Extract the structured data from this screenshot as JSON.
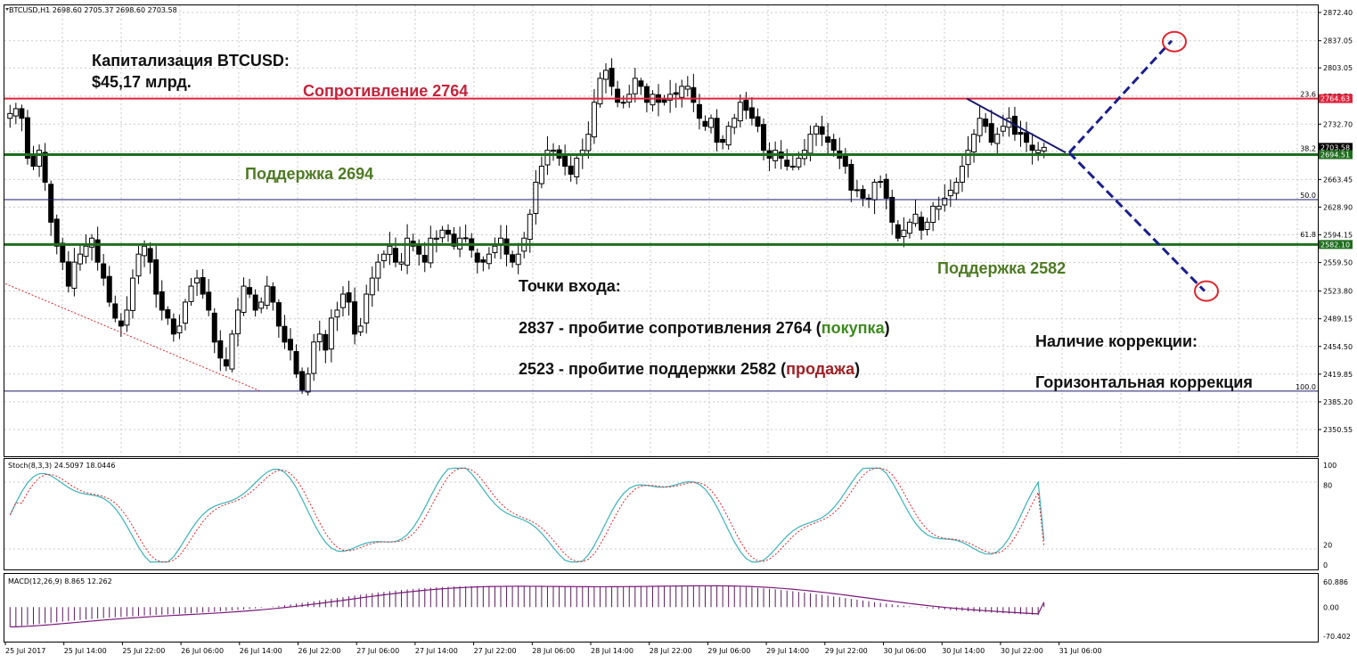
{
  "header": {
    "symbol_info": "BTCUSD,H1  2698.60 2705.37 2698.60 2703.58"
  },
  "price_axis": {
    "ticks": [
      "2872.40",
      "2837.05",
      "2803.05",
      "2767.70",
      "2732.70",
      "2698.70",
      "2663.45",
      "2628.90",
      "2594.15",
      "2559.50",
      "2523.80",
      "2489.15",
      "2454.50",
      "2419.85",
      "2385.20",
      "2350.55"
    ],
    "labels": {
      "resistance": "2764.63",
      "current": "2703.58",
      "support1": "2694.51",
      "support2": "2582.10"
    }
  },
  "fib_levels": [
    "23.6",
    "38.2",
    "50.0",
    "61.8",
    "100.0"
  ],
  "time_axis": [
    "25 Jul 2017",
    "25 Jul 14:00",
    "25 Jul 22:00",
    "26 Jul 06:00",
    "26 Jul 14:00",
    "26 Jul 22:00",
    "27 Jul 06:00",
    "27 Jul 14:00",
    "27 Jul 22:00",
    "28 Jul 06:00",
    "28 Jul 14:00",
    "28 Jul 22:00",
    "29 Jul 06:00",
    "29 Jul 14:00",
    "29 Jul 22:00",
    "30 Jul 06:00",
    "30 Jul 14:00",
    "30 Jul 22:00",
    "31 Jul 06:00"
  ],
  "annotations": {
    "cap_line1": "Капитализация BTCUSD:",
    "cap_line2": "$45,17 млрд.",
    "resistance": "Сопротивление 2764",
    "support1": "Поддержка 2694",
    "support2": "Поддержка 2582",
    "entry_title": "Точки входа:",
    "entry_buy_prefix": "2837 - пробитие сопротивления 2764 (",
    "entry_buy_word": "покупка",
    "entry_buy_suffix": ")",
    "entry_sell_prefix": "2523 - пробитие поддержки 2582 (",
    "entry_sell_word": "продажа",
    "entry_sell_suffix": ")",
    "correction_title": "Наличие коррекции:",
    "correction_type": "Горизонтальная коррекция"
  },
  "stoch": {
    "label": "Stoch(8,3,3) 24.5097 18.0446",
    "ticks": [
      "100",
      "80",
      "20",
      "0"
    ]
  },
  "macd": {
    "label": "MACD(12,26,9) 8.865 12.262",
    "ticks": [
      "60.886",
      "0.00",
      "-70.402"
    ]
  },
  "colors": {
    "resistance": "#e0243c",
    "support": "#1f6e1f",
    "fib_line": "#1a1a6e",
    "projection": "#1a1f8c",
    "stoch_main": "#3ab3b8",
    "stoch_signal": "#e0242c",
    "macd_hist": "#5a1a5a",
    "macd_signal": "#7a1a7a"
  },
  "chart_data": [
    {
      "type": "candlestick",
      "title": "BTCUSD,H1",
      "ylim": [
        2350.55,
        2872.4
      ],
      "levels": {
        "resistance": 2764.63,
        "support_upper": 2694.51,
        "support_lower": 2582.1,
        "fib_50": 2638.3,
        "fib_100": 2398.7
      },
      "close_path": [
        2746,
        2752,
        2740,
        2690,
        2680,
        2700,
        2660,
        2610,
        2580,
        2560,
        2530,
        2560,
        2570,
        2580,
        2590,
        2560,
        2540,
        2510,
        2490,
        2480,
        2500,
        2540,
        2570,
        2580,
        2560,
        2520,
        2500,
        2490,
        2470,
        2480,
        2510,
        2530,
        2540,
        2520,
        2500,
        2460,
        2440,
        2430,
        2470,
        2500,
        2530,
        2520,
        2500,
        2510,
        2530,
        2510,
        2480,
        2460,
        2450,
        2420,
        2400,
        2420,
        2460,
        2470,
        2450,
        2490,
        2500,
        2520,
        2510,
        2470,
        2480,
        2520,
        2540,
        2560,
        2570,
        2580,
        2560,
        2560,
        2590,
        2580,
        2570,
        2560,
        2590,
        2590,
        2600,
        2595,
        2580,
        2590,
        2590,
        2575,
        2560,
        2560,
        2570,
        2580,
        2590,
        2570,
        2560,
        2570,
        2590,
        2620,
        2660,
        2680,
        2700,
        2700,
        2690,
        2680,
        2670,
        2690,
        2700,
        2720,
        2760,
        2790,
        2800,
        2780,
        2760,
        2760,
        2770,
        2790,
        2780,
        2760,
        2770,
        2760,
        2760,
        2770,
        2770,
        2780,
        2780,
        2760,
        2740,
        2730,
        2740,
        2710,
        2710,
        2730,
        2740,
        2760,
        2750,
        2740,
        2730,
        2700,
        2690,
        2700,
        2690,
        2680,
        2680,
        2690,
        2700,
        2720,
        2730,
        2720,
        2710,
        2700,
        2690,
        2680,
        2650,
        2650,
        2640,
        2640,
        2660,
        2660,
        2640,
        2610,
        2590,
        2600,
        2610,
        2620,
        2600,
        2610,
        2630,
        2630,
        2640,
        2650,
        2660,
        2680,
        2700,
        2720,
        2740,
        2730,
        2710,
        2720,
        2730,
        2740,
        2720,
        2720,
        2710,
        2700,
        2700,
        2703.58
      ],
      "oscillators": [
        {
          "name": "Stoch(8,3,3)",
          "main": 24.5097,
          "signal": 18.0446,
          "ylim": [
            0,
            100
          ]
        },
        {
          "name": "MACD(12,26,9)",
          "main": 8.865,
          "signal": 12.262,
          "ylim": [
            -70.402,
            60.886
          ]
        }
      ]
    }
  ]
}
